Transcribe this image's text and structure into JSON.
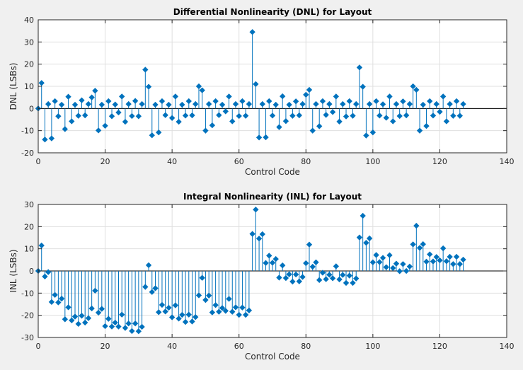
{
  "chart_data": [
    {
      "type": "stem",
      "title": "Differential Nonlinearity (DNL) for Layout",
      "xlabel": "Control Code",
      "ylabel": "DNL (LSBs)",
      "xlim": [
        0,
        140
      ],
      "ylim": [
        -20,
        40
      ],
      "xticks": [
        0,
        20,
        40,
        60,
        80,
        100,
        120,
        140
      ],
      "yticks": [
        -20,
        -10,
        0,
        10,
        20,
        30,
        40
      ],
      "grid": true,
      "color": "#0072BD",
      "x_start": 0,
      "values": [
        0,
        11.5,
        -14,
        2,
        -13.5,
        3.3,
        -3.5,
        1.7,
        -9.3,
        5.3,
        -5.8,
        1.7,
        -3.3,
        3.7,
        -3.1,
        2,
        5,
        8,
        -9.9,
        1.7,
        -7.8,
        3.3,
        -3.5,
        1.8,
        -1.8,
        5.4,
        -6,
        2,
        -3.4,
        3.4,
        -3.5,
        2,
        17.5,
        9.8,
        -12.1,
        1.7,
        -10.8,
        3.3,
        -3,
        1.7,
        -4.3,
        5.4,
        -6,
        1.7,
        -3.2,
        3.3,
        -3.1,
        2,
        10,
        8.2,
        -10,
        2,
        -7.6,
        3.3,
        -3,
        1.7,
        -1.3,
        5.4,
        -5.8,
        2,
        -3.4,
        3.3,
        -3.3,
        2,
        34.5,
        11,
        -13.1,
        2,
        -13,
        3.3,
        -3.2,
        1.7,
        -8.4,
        5.5,
        -5.7,
        1.7,
        -3.3,
        3.2,
        -3.1,
        2,
        6.2,
        8.4,
        -10,
        2,
        -8,
        3.3,
        -2.9,
        2,
        -1.6,
        5.4,
        -5.9,
        2,
        -3.6,
        3.3,
        -3.3,
        2,
        18.5,
        9.8,
        -12.2,
        2,
        -10.8,
        3.3,
        -3.2,
        1.9,
        -4.2,
        5.4,
        -5.8,
        2,
        -3.4,
        3.2,
        -3.1,
        2,
        10,
        8.4,
        -10,
        1.7,
        -7.9,
        3.3,
        -3.2,
        2,
        -1.5,
        5.4,
        -5.8,
        2,
        -3.3,
        3.3,
        -3.3,
        2
      ]
    },
    {
      "type": "stem",
      "title": "Integral Nonlinearity (INL) for Layout",
      "xlabel": "Control Code",
      "ylabel": "INL (LSBs)",
      "xlim": [
        0,
        140
      ],
      "ylim": [
        -30,
        30
      ],
      "xticks": [
        0,
        20,
        40,
        60,
        80,
        100,
        120,
        140
      ],
      "yticks": [
        -30,
        -20,
        -10,
        0,
        10,
        20,
        30
      ],
      "grid": true,
      "color": "#0072BD",
      "x_start": 0,
      "values": [
        0,
        11.5,
        -2.5,
        -0.5,
        -14,
        -10.8,
        -14.2,
        -12.5,
        -21.8,
        -16.4,
        -22.3,
        -20.6,
        -23.9,
        -20.2,
        -23.3,
        -21.3,
        -16.9,
        -8.9,
        -18.8,
        -17.1,
        -24.9,
        -21.6,
        -25.1,
        -23.3,
        -25.1,
        -19.7,
        -25.7,
        -23.7,
        -27.1,
        -23.7,
        -27.2,
        -25.2,
        -7.2,
        2.6,
        -9.5,
        -7.8,
        -18.6,
        -15.3,
        -18.3,
        -16.6,
        -20.9,
        -15.5,
        -21.5,
        -19.8,
        -23,
        -19.7,
        -22.8,
        -20.8,
        -11,
        -3.1,
        -13.1,
        -11.1,
        -18.7,
        -15.4,
        -18.4,
        -16.7,
        -18,
        -12.6,
        -18.4,
        -16.4,
        -19.8,
        -16.5,
        -19.8,
        -17.8,
        16.7,
        27.7,
        14.6,
        16.6,
        3.6,
        6.9,
        3.7,
        5.4,
        -3,
        2.5,
        -3.2,
        -1.5,
        -4.8,
        -1.6,
        -4.7,
        -2.7,
        3.5,
        11.9,
        1.9,
        3.9,
        -4.1,
        -0.8,
        -3.7,
        -1.7,
        -3.3,
        2.1,
        -3.8,
        -1.8,
        -5.4,
        -2.1,
        -5.4,
        -3.4,
        15.1,
        24.9,
        12.7,
        14.7,
        3.9,
        7.2,
        4,
        5.9,
        1.7,
        7.1,
        1.3,
        3.3,
        -0.1,
        3.1,
        0,
        2,
        12,
        20.4,
        10.4,
        12.1,
        4.2,
        7.5,
        4.3,
        6.3,
        4.8,
        10.2,
        4.4,
        6.4,
        3.1,
        6.4,
        3.1,
        5.1
      ]
    }
  ]
}
